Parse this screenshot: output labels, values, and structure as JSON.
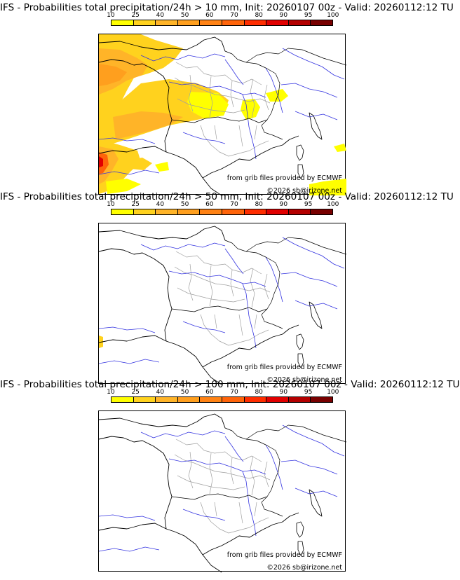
{
  "colorbar": {
    "ticks": [
      "10",
      "25",
      "40",
      "50",
      "60",
      "70",
      "80",
      "90",
      "95",
      "100"
    ],
    "colors": [
      "#ffff00",
      "#ffd21e",
      "#ffb428",
      "#ff9f1e",
      "#ff8214",
      "#ff640a",
      "#ff2d00",
      "#e10000",
      "#b40000",
      "#780000"
    ]
  },
  "panels": [
    {
      "title": "IFS - Probabilities total precipitation/24h > 10 mm, Init: 20260107 00z - Valid: 20260112:12 TU",
      "threshold_mm": 10
    },
    {
      "title": "IFS - Probabilities total precipitation/24h > 50 mm, Init: 20260107 00z - Valid: 20260112:12 TU",
      "threshold_mm": 50
    },
    {
      "title": "IFS - Probabilities total precipitation/24h > 100 mm, Init: 20260107 00z - Valid: 20260112:12 TU",
      "threshold_mm": 100
    }
  ],
  "credit": {
    "source": "from grib files provided by ECMWF",
    "copyright": "©2026 sb@irizone.net"
  },
  "map": {
    "coast_color": "#000000",
    "river_color": "#3535e0",
    "border_color": "#a0a0a0"
  }
}
